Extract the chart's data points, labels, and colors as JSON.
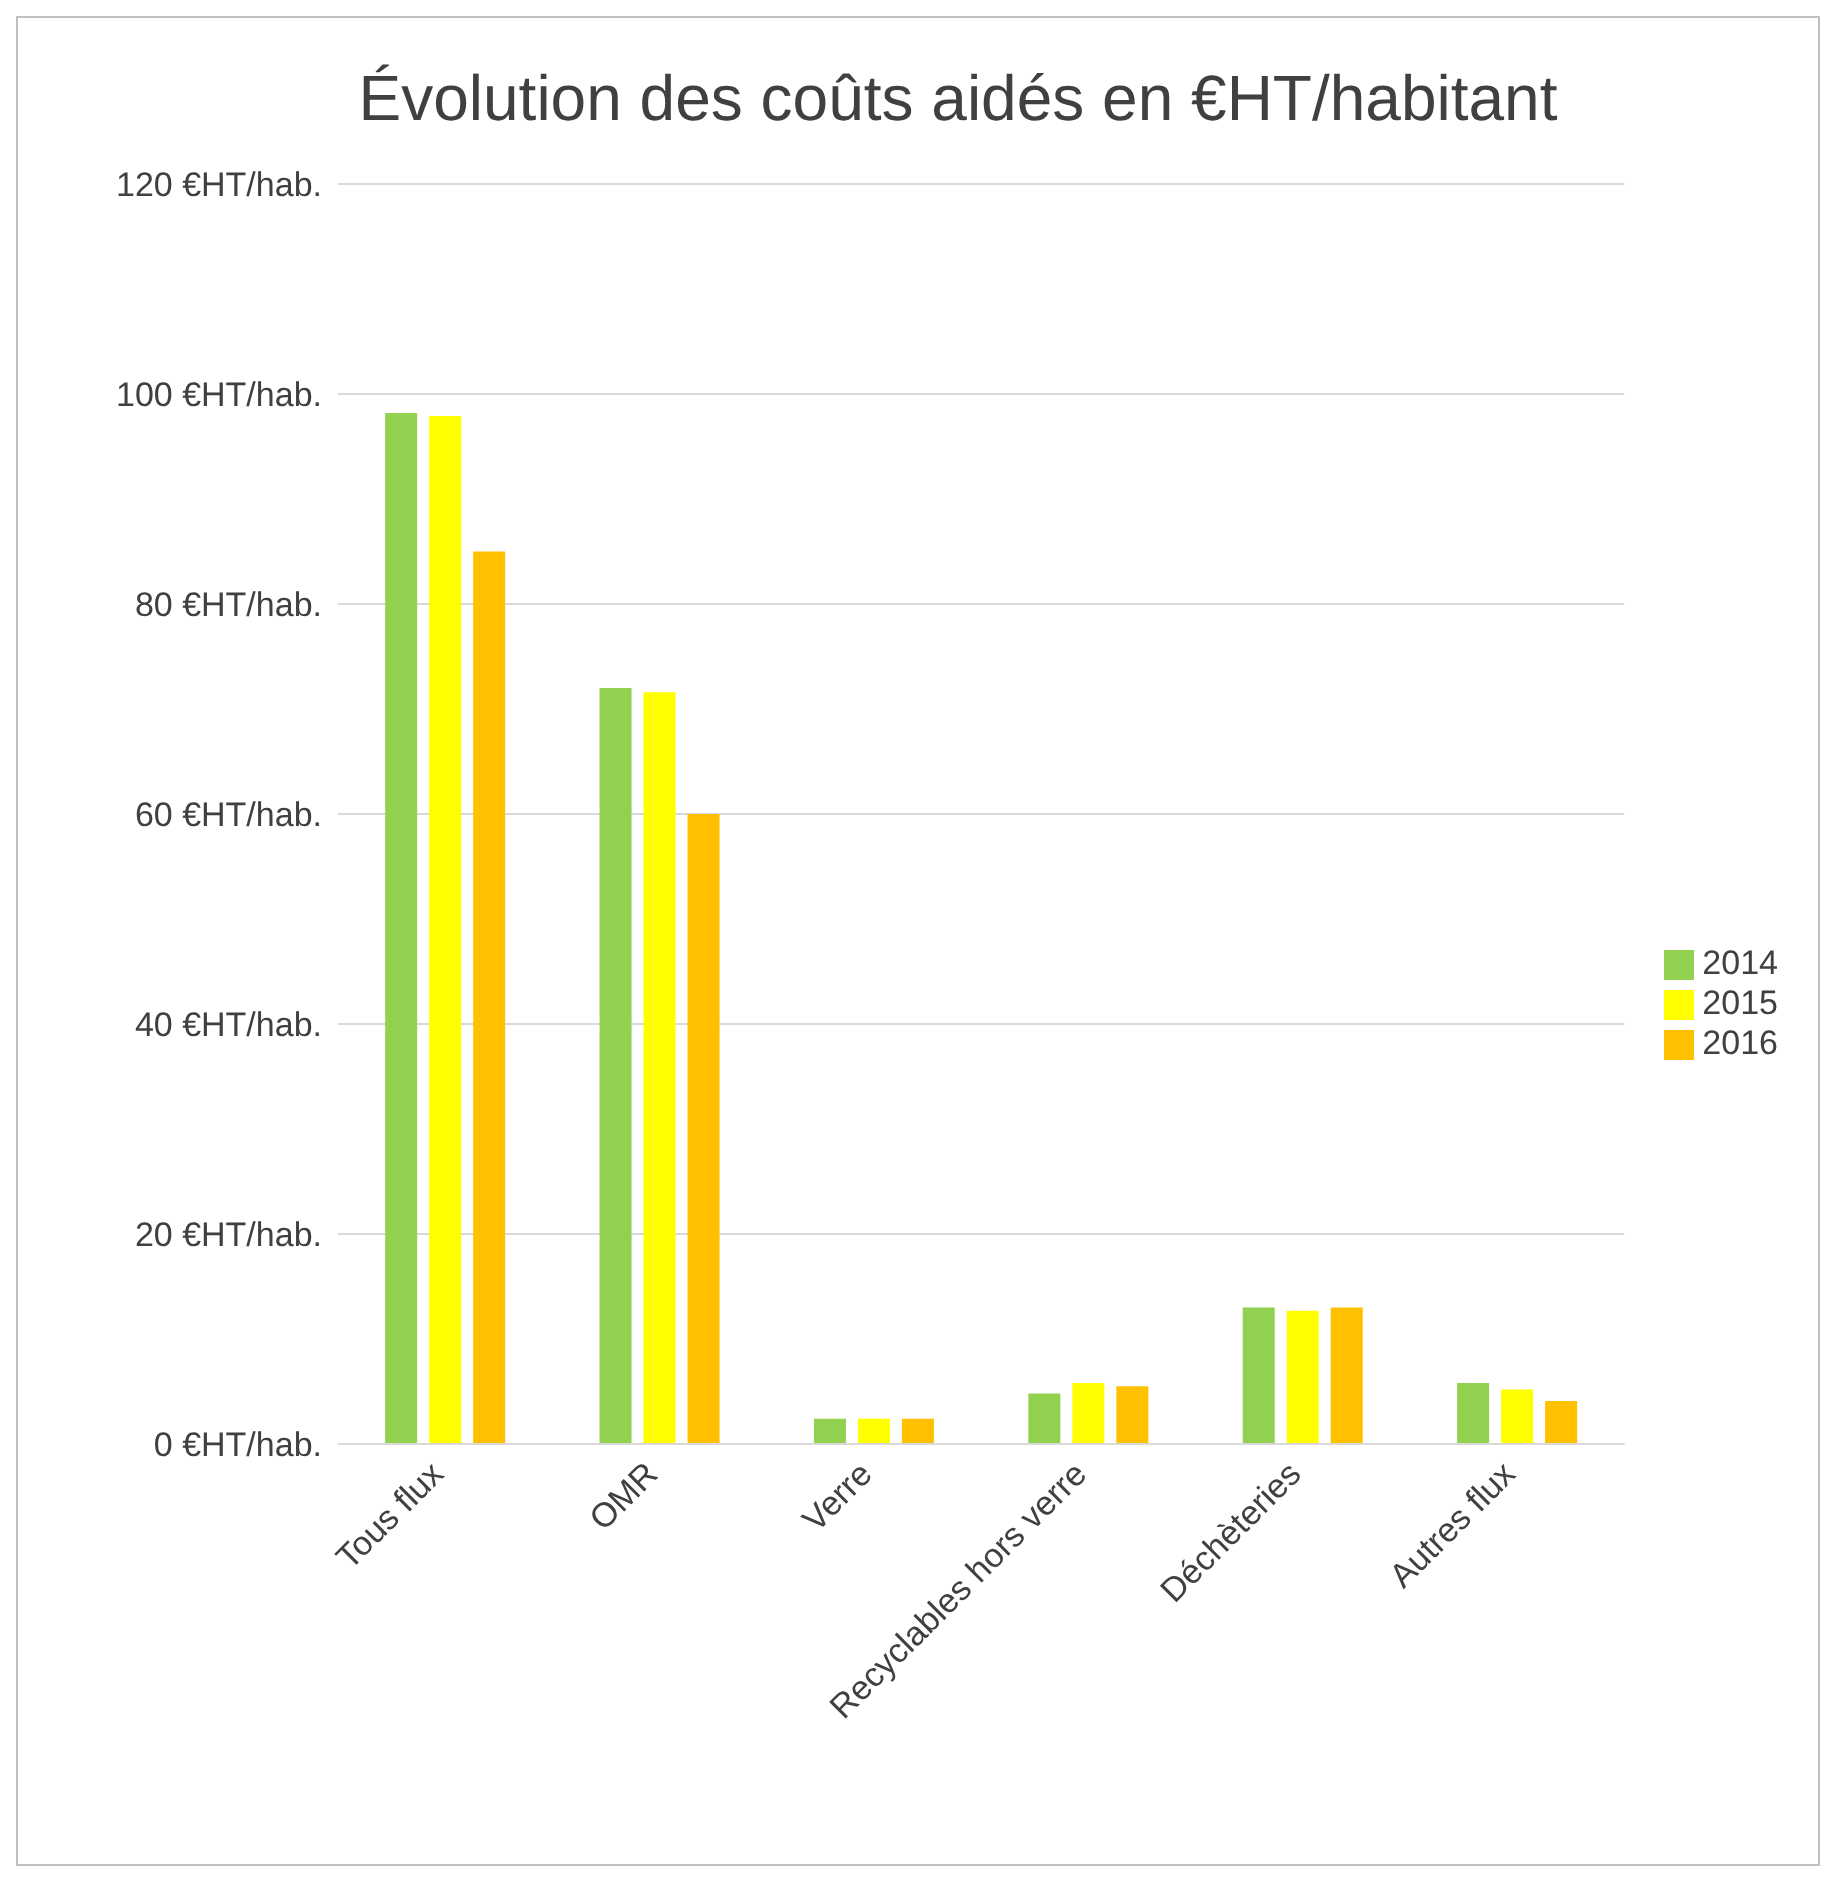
{
  "chart_data": {
    "type": "bar",
    "title": "Évolution des coûts aidés en €HT/habitant",
    "categories": [
      "Tous flux",
      "OMR",
      "Verre",
      "Recyclables hors verre",
      "Déchèteries",
      "Autres flux"
    ],
    "series": [
      {
        "name": "2014",
        "color": "#92d050",
        "values": [
          98.2,
          72,
          2.4,
          4.8,
          13,
          5.8
        ]
      },
      {
        "name": "2015",
        "color": "#ffff00",
        "values": [
          97.9,
          71.6,
          2.4,
          5.8,
          12.7,
          5.2
        ]
      },
      {
        "name": "2016",
        "color": "#ffc000",
        "values": [
          85,
          60,
          2.4,
          5.5,
          13,
          4.1
        ]
      }
    ],
    "ylim": [
      0,
      120
    ],
    "yticks": [
      {
        "value": 0,
        "label": "0 €HT/hab."
      },
      {
        "value": 20,
        "label": "20 €HT/hab."
      },
      {
        "value": 40,
        "label": "40 €HT/hab."
      },
      {
        "value": 60,
        "label": "60 €HT/hab."
      },
      {
        "value": 80,
        "label": "80 €HT/hab."
      },
      {
        "value": 100,
        "label": "100 €HT/hab."
      },
      {
        "value": 120,
        "label": "120 €HT/hab."
      }
    ],
    "grid": "y",
    "legend": "right"
  }
}
